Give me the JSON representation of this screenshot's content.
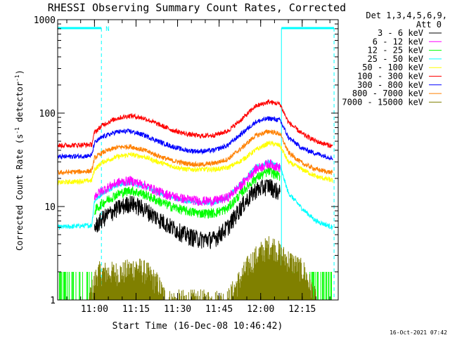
{
  "chart_data": {
    "type": "line",
    "title": "RHESSI Observing Summary Count Rates, Corrected",
    "xlabel": "Start Time (16-Dec-08 10:46:42)",
    "ylabel": "Corrected Count Rate (s",
    "ylabel_sup1": "-1",
    "ylabel_mid": " detector",
    "ylabel_sup2": "-1",
    "ylabel_end": ")",
    "y_scale": "log",
    "ylim": [
      1,
      1000
    ],
    "xlim": [
      "10:46:42",
      "12:28:00"
    ],
    "x_ticks": [
      "11:00",
      "11:15",
      "11:30",
      "11:45",
      "12:00",
      "12:15"
    ],
    "y_ticks": [
      "1",
      "10",
      "100",
      "1000"
    ],
    "legend_title_1": "Det 1,3,4,5,6,9,",
    "legend_title_2": "Att 0",
    "legend_placement": "top-right outside",
    "timestamp": "16-Oct-2021 07:42",
    "annotation_N": "N",
    "background_color": "#ffffff",
    "text_color": "#000000",
    "series": [
      {
        "name": "3 - 6 keV",
        "color": "#000000",
        "x": [
          "11:00",
          "11:03",
          "11:08",
          "11:13",
          "11:18",
          "11:23",
          "11:28",
          "11:33",
          "11:38",
          "11:43",
          "11:48",
          "11:53",
          "11:58",
          "12:03",
          "12:07"
        ],
        "y": [
          6,
          7.5,
          9.5,
          11,
          9.5,
          7.5,
          6,
          5,
          4.5,
          4.5,
          6,
          10,
          15,
          17,
          14
        ]
      },
      {
        "name": "6 - 12 keV",
        "color": "#ff00ff",
        "x": [
          "11:00",
          "11:03",
          "11:08",
          "11:13",
          "11:18",
          "11:23",
          "11:28",
          "11:33",
          "11:38",
          "11:43",
          "11:48",
          "11:53",
          "11:58",
          "12:03",
          "12:07"
        ],
        "y": [
          13,
          15,
          18,
          19,
          17,
          14.5,
          13,
          12,
          11.5,
          11.5,
          12.5,
          17,
          25,
          29,
          26
        ]
      },
      {
        "name": "12 - 25 keV",
        "color": "#00ff00",
        "x": [
          "11:00",
          "11:03",
          "11:08",
          "11:13",
          "11:18",
          "11:23",
          "11:28",
          "11:33",
          "11:38",
          "11:43",
          "11:48",
          "11:53",
          "11:58",
          "12:03",
          "12:07"
        ],
        "y": [
          9,
          11,
          13.5,
          15,
          13.5,
          11.5,
          10,
          9,
          8.5,
          8.5,
          9.5,
          14,
          20,
          24,
          21
        ]
      },
      {
        "name": "25 - 50 keV",
        "color": "#00ffff",
        "x": [
          "10:46:42",
          "10:59",
          "11:00",
          "11:03",
          "11:08",
          "11:13",
          "11:18",
          "11:23",
          "11:28",
          "11:33",
          "11:38",
          "11:43",
          "11:48",
          "11:53",
          "11:58",
          "12:03",
          "12:07",
          "12:10",
          "12:15",
          "12:20",
          "12:26"
        ],
        "y": [
          6,
          6.3,
          11.5,
          14,
          17,
          18,
          16.5,
          14,
          12.5,
          11.5,
          11,
          11,
          12.5,
          18,
          26,
          30,
          27,
          14,
          9.5,
          7,
          6
        ]
      },
      {
        "name": "50 - 100 keV",
        "color": "#ffff00",
        "x": [
          "10:46:42",
          "10:59",
          "11:00",
          "11:03",
          "11:08",
          "11:13",
          "11:18",
          "11:23",
          "11:28",
          "11:33",
          "11:38",
          "11:43",
          "11:48",
          "11:53",
          "11:58",
          "12:03",
          "12:07",
          "12:10",
          "12:15",
          "12:20",
          "12:26"
        ],
        "y": [
          18,
          19,
          25,
          30,
          34,
          36,
          34,
          30,
          27,
          25,
          25,
          25,
          26,
          31,
          40,
          48,
          45,
          30,
          25,
          21,
          19
        ]
      },
      {
        "name": "100 - 300 keV",
        "color": "#ff0000",
        "x": [
          "10:46:42",
          "10:59",
          "11:00",
          "11:03",
          "11:08",
          "11:13",
          "11:18",
          "11:23",
          "11:28",
          "11:33",
          "11:38",
          "11:43",
          "11:48",
          "11:53",
          "11:58",
          "12:03",
          "12:07",
          "12:10",
          "12:15",
          "12:20",
          "12:26"
        ],
        "y": [
          45,
          46,
          62,
          75,
          88,
          94,
          88,
          76,
          66,
          60,
          57,
          58,
          64,
          85,
          118,
          132,
          125,
          80,
          60,
          50,
          44
        ]
      },
      {
        "name": "300 - 800 keV",
        "color": "#0000ff",
        "x": [
          "10:46:42",
          "10:59",
          "11:00",
          "11:03",
          "11:08",
          "11:13",
          "11:18",
          "11:23",
          "11:28",
          "11:33",
          "11:38",
          "11:43",
          "11:48",
          "11:53",
          "11:58",
          "12:03",
          "12:07",
          "12:10",
          "12:15",
          "12:20",
          "12:26"
        ],
        "y": [
          34,
          35,
          48,
          56,
          63,
          64,
          58,
          50,
          44,
          40,
          39,
          40,
          45,
          60,
          80,
          88,
          84,
          55,
          42,
          37,
          33
        ]
      },
      {
        "name": "800 - 7000 keV",
        "color": "#ff8000",
        "x": [
          "10:46:42",
          "10:59",
          "11:00",
          "11:03",
          "11:08",
          "11:13",
          "11:18",
          "11:23",
          "11:28",
          "11:33",
          "11:38",
          "11:43",
          "11:48",
          "11:53",
          "11:58",
          "12:03",
          "12:07",
          "12:10",
          "12:15",
          "12:20",
          "12:26"
        ],
        "y": [
          23,
          24,
          33,
          38,
          43,
          44,
          40,
          35,
          31,
          29,
          28,
          29,
          32,
          42,
          57,
          64,
          60,
          38,
          29,
          25,
          23
        ]
      },
      {
        "name": "7000 - 15000 keV",
        "color": "#808000",
        "x": [
          "10:58",
          "11:01",
          "11:05",
          "11:10",
          "11:15",
          "11:19",
          "11:23",
          "11:26",
          "11:48",
          "11:52",
          "11:56",
          "12:00",
          "12:04",
          "12:08",
          "12:12",
          "12:16",
          "12:20"
        ],
        "y": [
          1,
          2,
          2,
          2,
          2.3,
          2,
          1.5,
          1,
          1,
          1.6,
          2.5,
          3.3,
          4,
          3,
          2.5,
          2,
          1
        ]
      }
    ],
    "extra_lines": [
      {
        "label": "green (12 - 25 keV) low-count segments",
        "x_ranges": [
          [
            "10:46:42",
            "10:59"
          ],
          [
            "12:10",
            "12:26"
          ]
        ],
        "level": [
          1,
          2
        ]
      }
    ]
  }
}
